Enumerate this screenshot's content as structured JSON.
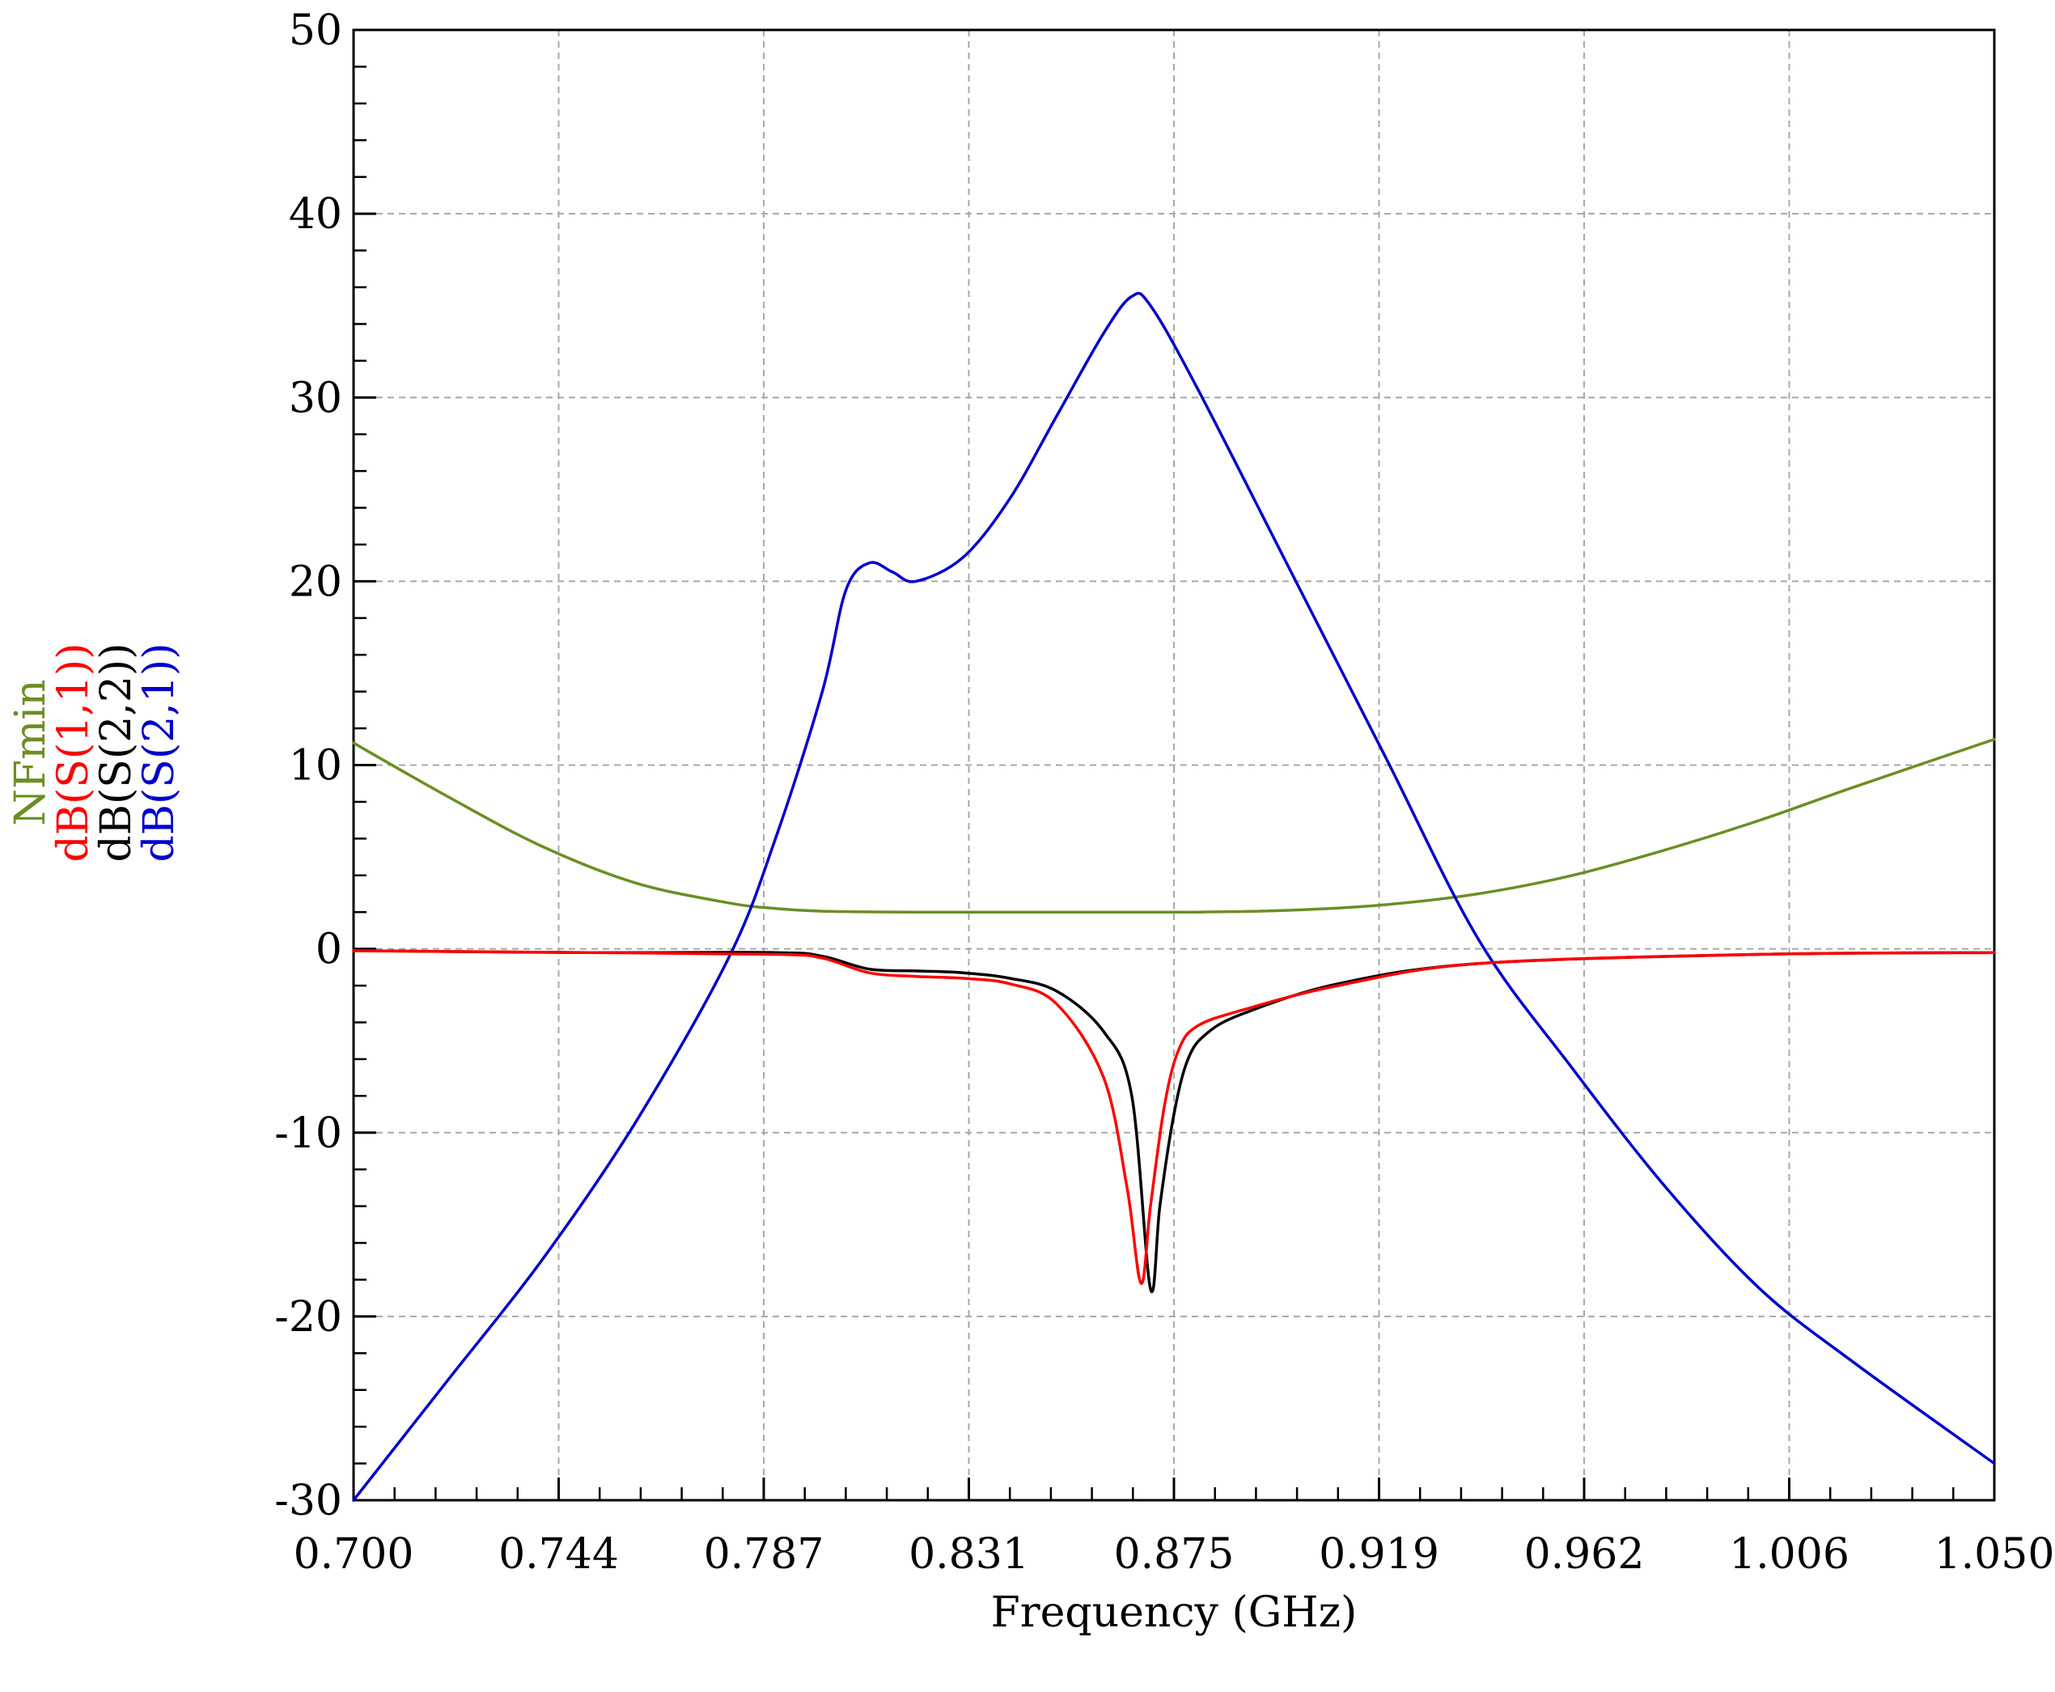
{
  "chart_data": {
    "type": "line",
    "xlabel": "Frequency (GHz)",
    "xlim": [
      0.7,
      1.05
    ],
    "ylim": [
      -30,
      50
    ],
    "x_ticks": [
      "0.700",
      "0.744",
      "0.787",
      "0.831",
      "0.875",
      "0.919",
      "0.962",
      "1.006",
      "1.050"
    ],
    "y_ticks": [
      "50",
      "40",
      "30",
      "20",
      "10",
      "0",
      "-10",
      "-20",
      "-30"
    ],
    "grid": true,
    "legend_placement": "left-vertical",
    "series": [
      {
        "name": "NFmin",
        "color": "#6b8e23",
        "x": [
          0.7,
          0.72,
          0.74,
          0.76,
          0.78,
          0.79,
          0.8,
          0.82,
          0.85,
          0.88,
          0.9,
          0.92,
          0.94,
          0.96,
          0.98,
          1.0,
          1.02,
          1.05
        ],
        "y": [
          11.2,
          8.3,
          5.6,
          3.6,
          2.5,
          2.2,
          2.05,
          2.0,
          2.0,
          2.0,
          2.1,
          2.4,
          3.0,
          4.0,
          5.4,
          7.0,
          8.8,
          11.4
        ]
      },
      {
        "name": "dB(S(1,1))",
        "color": "#ff0000",
        "x": [
          0.7,
          0.75,
          0.79,
          0.8,
          0.81,
          0.82,
          0.83,
          0.84,
          0.85,
          0.86,
          0.865,
          0.868,
          0.87,
          0.873,
          0.876,
          0.88,
          0.89,
          0.91,
          0.94,
          1.0,
          1.05
        ],
        "y": [
          -0.1,
          -0.2,
          -0.3,
          -0.5,
          -1.3,
          -1.5,
          -1.6,
          -1.9,
          -3.0,
          -7.0,
          -13.0,
          -18.2,
          -14.0,
          -8.5,
          -5.5,
          -4.2,
          -3.3,
          -2.0,
          -0.8,
          -0.3,
          -0.2
        ]
      },
      {
        "name": "dB(S(2,2))",
        "color": "#000000",
        "x": [
          0.7,
          0.75,
          0.79,
          0.8,
          0.81,
          0.82,
          0.83,
          0.84,
          0.85,
          0.86,
          0.866,
          0.87,
          0.872,
          0.875,
          0.878,
          0.882,
          0.89,
          0.91,
          0.94,
          1.0,
          1.05
        ],
        "y": [
          -0.1,
          -0.2,
          -0.2,
          -0.4,
          -1.1,
          -1.2,
          -1.3,
          -1.6,
          -2.3,
          -4.5,
          -8.0,
          -18.5,
          -14.0,
          -9.0,
          -6.0,
          -4.6,
          -3.5,
          -1.9,
          -0.8,
          -0.3,
          -0.2
        ]
      },
      {
        "name": "dB(S(2,1))",
        "color": "#0000cc",
        "x": [
          0.7,
          0.72,
          0.74,
          0.76,
          0.78,
          0.79,
          0.8,
          0.805,
          0.81,
          0.815,
          0.82,
          0.83,
          0.84,
          0.85,
          0.86,
          0.866,
          0.87,
          0.88,
          0.9,
          0.92,
          0.94,
          0.96,
          0.98,
          1.0,
          1.02,
          1.05
        ],
        "y": [
          -30,
          -23.5,
          -17,
          -9.5,
          -0.5,
          6,
          14,
          19.5,
          21,
          20.5,
          20,
          21.3,
          24.5,
          29,
          33.5,
          35.5,
          35,
          30.5,
          20.5,
          10.5,
          0.5,
          -6.5,
          -13,
          -18.5,
          -22.5,
          -28
        ]
      }
    ]
  }
}
